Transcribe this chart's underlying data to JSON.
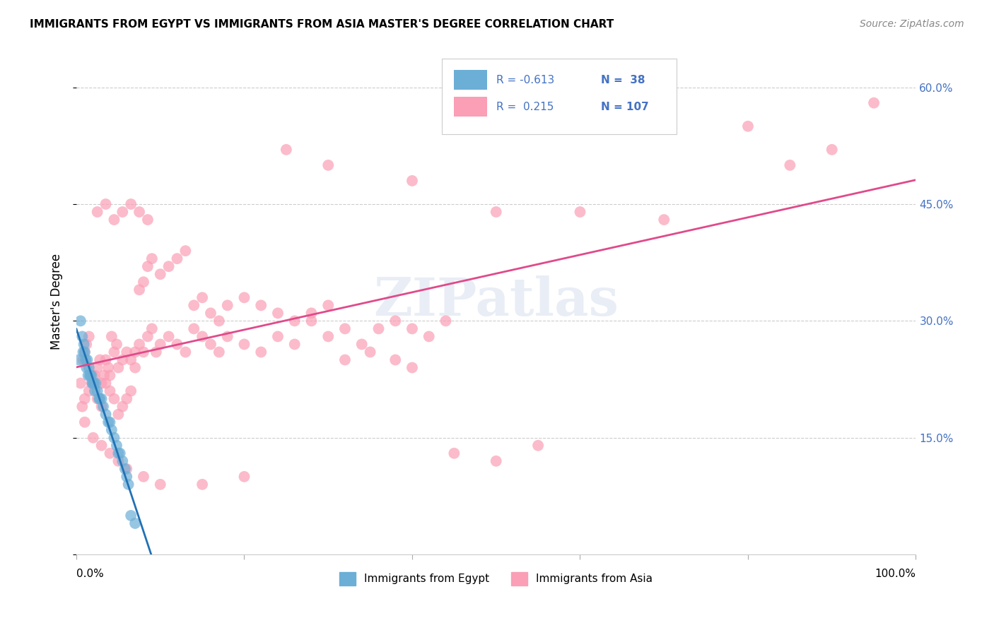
{
  "title": "IMMIGRANTS FROM EGYPT VS IMMIGRANTS FROM ASIA MASTER'S DEGREE CORRELATION CHART",
  "source": "Source: ZipAtlas.com",
  "ylabel": "Master's Degree",
  "yticks": [
    0.0,
    0.15,
    0.3,
    0.45,
    0.6
  ],
  "xlim": [
    0.0,
    1.0
  ],
  "ylim": [
    0.0,
    0.65
  ],
  "color_egypt": "#6baed6",
  "color_asia": "#fa9fb5",
  "line_color_egypt": "#2171b5",
  "line_color_asia": "#e04a8a",
  "egypt_x": [
    0.003,
    0.005,
    0.007,
    0.008,
    0.009,
    0.01,
    0.011,
    0.012,
    0.013,
    0.014,
    0.015,
    0.016,
    0.017,
    0.018,
    0.019,
    0.02,
    0.021,
    0.022,
    0.023,
    0.025,
    0.027,
    0.028,
    0.03,
    0.032,
    0.035,
    0.038,
    0.04,
    0.042,
    0.045,
    0.048,
    0.05,
    0.052,
    0.055,
    0.058,
    0.06,
    0.062,
    0.065,
    0.07
  ],
  "egypt_y": [
    0.25,
    0.3,
    0.28,
    0.26,
    0.27,
    0.26,
    0.25,
    0.24,
    0.25,
    0.23,
    0.24,
    0.23,
    0.23,
    0.23,
    0.22,
    0.22,
    0.22,
    0.21,
    0.22,
    0.21,
    0.2,
    0.2,
    0.2,
    0.19,
    0.18,
    0.17,
    0.17,
    0.16,
    0.15,
    0.14,
    0.13,
    0.13,
    0.12,
    0.11,
    0.1,
    0.09,
    0.05,
    0.04
  ],
  "asia_x": [
    0.005,
    0.008,
    0.01,
    0.012,
    0.015,
    0.018,
    0.02,
    0.022,
    0.025,
    0.028,
    0.03,
    0.033,
    0.035,
    0.038,
    0.04,
    0.042,
    0.045,
    0.048,
    0.05,
    0.055,
    0.06,
    0.065,
    0.07,
    0.075,
    0.08,
    0.085,
    0.09,
    0.095,
    0.1,
    0.11,
    0.12,
    0.13,
    0.14,
    0.15,
    0.16,
    0.17,
    0.18,
    0.2,
    0.22,
    0.24,
    0.26,
    0.28,
    0.3,
    0.32,
    0.34,
    0.36,
    0.38,
    0.4,
    0.42,
    0.44,
    0.007,
    0.01,
    0.015,
    0.02,
    0.025,
    0.03,
    0.035,
    0.04,
    0.045,
    0.05,
    0.055,
    0.06,
    0.065,
    0.07,
    0.075,
    0.08,
    0.085,
    0.09,
    0.1,
    0.11,
    0.12,
    0.13,
    0.14,
    0.15,
    0.16,
    0.17,
    0.18,
    0.2,
    0.22,
    0.24,
    0.26,
    0.28,
    0.3,
    0.32,
    0.35,
    0.38,
    0.4,
    0.45,
    0.5,
    0.55,
    0.01,
    0.02,
    0.03,
    0.04,
    0.05,
    0.06,
    0.08,
    0.1,
    0.15,
    0.2,
    0.25,
    0.3,
    0.4,
    0.5,
    0.6,
    0.7,
    0.8,
    0.85,
    0.9,
    0.95,
    0.025,
    0.035,
    0.045,
    0.055,
    0.065,
    0.075,
    0.085
  ],
  "asia_y": [
    0.22,
    0.25,
    0.26,
    0.27,
    0.28,
    0.22,
    0.23,
    0.23,
    0.24,
    0.25,
    0.22,
    0.23,
    0.25,
    0.24,
    0.23,
    0.28,
    0.26,
    0.27,
    0.24,
    0.25,
    0.26,
    0.25,
    0.24,
    0.27,
    0.26,
    0.28,
    0.29,
    0.26,
    0.27,
    0.28,
    0.27,
    0.26,
    0.29,
    0.28,
    0.27,
    0.26,
    0.28,
    0.27,
    0.26,
    0.28,
    0.27,
    0.3,
    0.28,
    0.29,
    0.27,
    0.29,
    0.3,
    0.29,
    0.28,
    0.3,
    0.19,
    0.2,
    0.21,
    0.22,
    0.2,
    0.19,
    0.22,
    0.21,
    0.2,
    0.18,
    0.19,
    0.2,
    0.21,
    0.26,
    0.34,
    0.35,
    0.37,
    0.38,
    0.36,
    0.37,
    0.38,
    0.39,
    0.32,
    0.33,
    0.31,
    0.3,
    0.32,
    0.33,
    0.32,
    0.31,
    0.3,
    0.31,
    0.32,
    0.25,
    0.26,
    0.25,
    0.24,
    0.13,
    0.12,
    0.14,
    0.17,
    0.15,
    0.14,
    0.13,
    0.12,
    0.11,
    0.1,
    0.09,
    0.09,
    0.1,
    0.52,
    0.5,
    0.48,
    0.44,
    0.44,
    0.43,
    0.55,
    0.5,
    0.52,
    0.58,
    0.44,
    0.45,
    0.43,
    0.44,
    0.45,
    0.44,
    0.43
  ]
}
